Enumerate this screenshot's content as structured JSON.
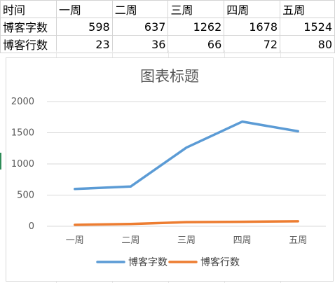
{
  "sheet": {
    "header": [
      "时间",
      "一周",
      "二周",
      "三周",
      "四周",
      "五周"
    ],
    "rows": [
      [
        "博客字数",
        "598",
        "637",
        "1262",
        "1678",
        "1524"
      ],
      [
        "博客行数",
        "23",
        "36",
        "66",
        "72",
        "80"
      ]
    ]
  },
  "colors": {
    "series1": "#5b9bd5",
    "series2": "#ed7d31",
    "grid": "#d9d9d9",
    "text": "#595959"
  },
  "chart_data": {
    "type": "line",
    "title": "图表标题",
    "categories": [
      "一周",
      "二周",
      "三周",
      "四周",
      "五周"
    ],
    "series": [
      {
        "name": "博客字数",
        "values": [
          598,
          637,
          1262,
          1678,
          1524
        ]
      },
      {
        "name": "博客行数",
        "values": [
          23,
          36,
          66,
          72,
          80
        ]
      }
    ],
    "ylim": [
      0,
      2000
    ],
    "yticks": [
      0,
      500,
      1000,
      1500,
      2000
    ],
    "grid": true,
    "legend": "bottom"
  }
}
